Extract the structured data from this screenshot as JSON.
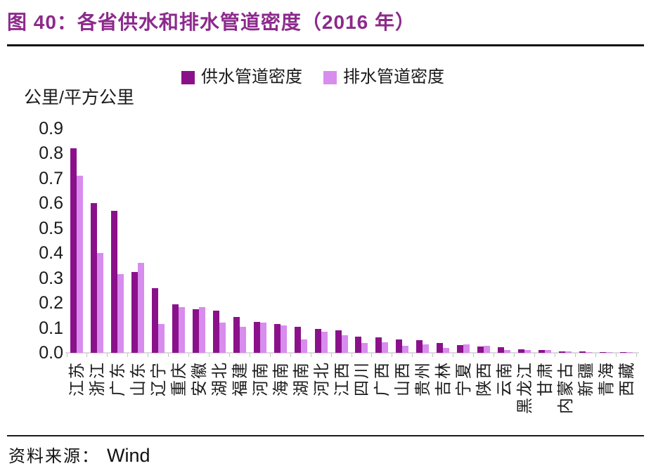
{
  "header": {
    "title": "图 40：各省供水和排水管道密度（2016 年）"
  },
  "footer": {
    "source_label": "资料来源：",
    "source_value": "Wind"
  },
  "chart_data": {
    "type": "bar",
    "title": "各省供水和排水管道密度（2016 年）",
    "unit_label": "公里/平方公里",
    "xlabel": "",
    "ylabel": "公里/平方公里",
    "ylim": [
      0,
      0.9
    ],
    "ytick_step": 0.1,
    "grid": false,
    "legend_position": "top",
    "categories": [
      "江苏",
      "浙江",
      "广东",
      "山东",
      "辽宁",
      "重庆",
      "安徽",
      "湖北",
      "福建",
      "河南",
      "海南",
      "湖南",
      "河北",
      "江西",
      "四川",
      "广西",
      "山西",
      "贵州",
      "吉林",
      "宁夏",
      "陕西",
      "云南",
      "黑龙江",
      "甘肃",
      "内蒙古",
      "新疆",
      "青海",
      "西藏"
    ],
    "series": [
      {
        "name": "供水管道密度",
        "color": "#8B118B",
        "values": [
          0.82,
          0.6,
          0.57,
          0.325,
          0.26,
          0.195,
          0.175,
          0.17,
          0.145,
          0.125,
          0.115,
          0.105,
          0.095,
          0.09,
          0.065,
          0.062,
          0.055,
          0.05,
          0.04,
          0.031,
          0.025,
          0.022,
          0.013,
          0.011,
          0.006,
          0.005,
          0.004,
          0.002
        ]
      },
      {
        "name": "排水管道密度",
        "color": "#D88CEE",
        "values": [
          0.71,
          0.4,
          0.315,
          0.36,
          0.115,
          0.182,
          0.182,
          0.122,
          0.105,
          0.12,
          0.11,
          0.055,
          0.086,
          0.07,
          0.04,
          0.042,
          0.027,
          0.035,
          0.021,
          0.033,
          0.027,
          0.01,
          0.01,
          0.011,
          0.007,
          0.004,
          0.003,
          0.002
        ]
      }
    ]
  }
}
